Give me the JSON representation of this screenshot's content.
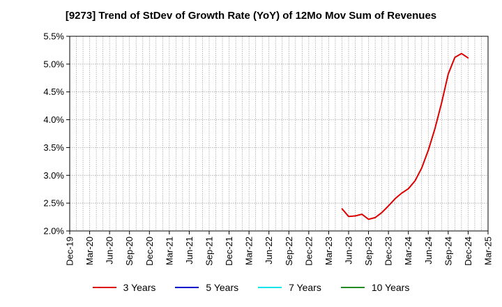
{
  "chart_data": {
    "type": "line",
    "title": "[9273]  Trend of StDev of Growth Rate (YoY) of 12Mo Mov Sum of Revenues",
    "xlabel": "",
    "ylabel": "",
    "ylim": [
      2.0,
      5.5
    ],
    "y_ticks": [
      "2.0%",
      "2.5%",
      "3.0%",
      "3.5%",
      "4.0%",
      "4.5%",
      "5.0%",
      "5.5%"
    ],
    "x_range": [
      "2019-12",
      "2025-03"
    ],
    "x_ticks": [
      "Dec-19",
      "Mar-20",
      "Jun-20",
      "Sep-20",
      "Dec-20",
      "Mar-21",
      "Jun-21",
      "Sep-21",
      "Dec-21",
      "Mar-22",
      "Jun-22",
      "Sep-22",
      "Dec-22",
      "Mar-23",
      "Jun-23",
      "Sep-23",
      "Dec-23",
      "Mar-24",
      "Jun-24",
      "Sep-24",
      "Dec-24",
      "Mar-25"
    ],
    "grid": true,
    "legend_position": "bottom",
    "series": [
      {
        "name": "3 Years",
        "color": "#dd0000",
        "x": [
          "2023-05",
          "2023-06",
          "2023-07",
          "2023-08",
          "2023-09",
          "2023-10",
          "2023-11",
          "2023-12",
          "2024-01",
          "2024-02",
          "2024-03",
          "2024-04",
          "2024-05",
          "2024-06",
          "2024-07",
          "2024-08",
          "2024-09",
          "2024-10",
          "2024-11",
          "2024-12"
        ],
        "values": [
          2.4,
          2.26,
          2.27,
          2.3,
          2.21,
          2.24,
          2.33,
          2.45,
          2.58,
          2.68,
          2.76,
          2.9,
          3.13,
          3.45,
          3.84,
          4.3,
          4.82,
          5.12,
          5.19,
          5.11
        ]
      },
      {
        "name": "5 Years",
        "color": "#0000cc",
        "x": [],
        "values": []
      },
      {
        "name": "7 Years",
        "color": "#00e5ee",
        "x": [],
        "values": []
      },
      {
        "name": "10 Years",
        "color": "#228b22",
        "x": [],
        "values": []
      }
    ]
  }
}
